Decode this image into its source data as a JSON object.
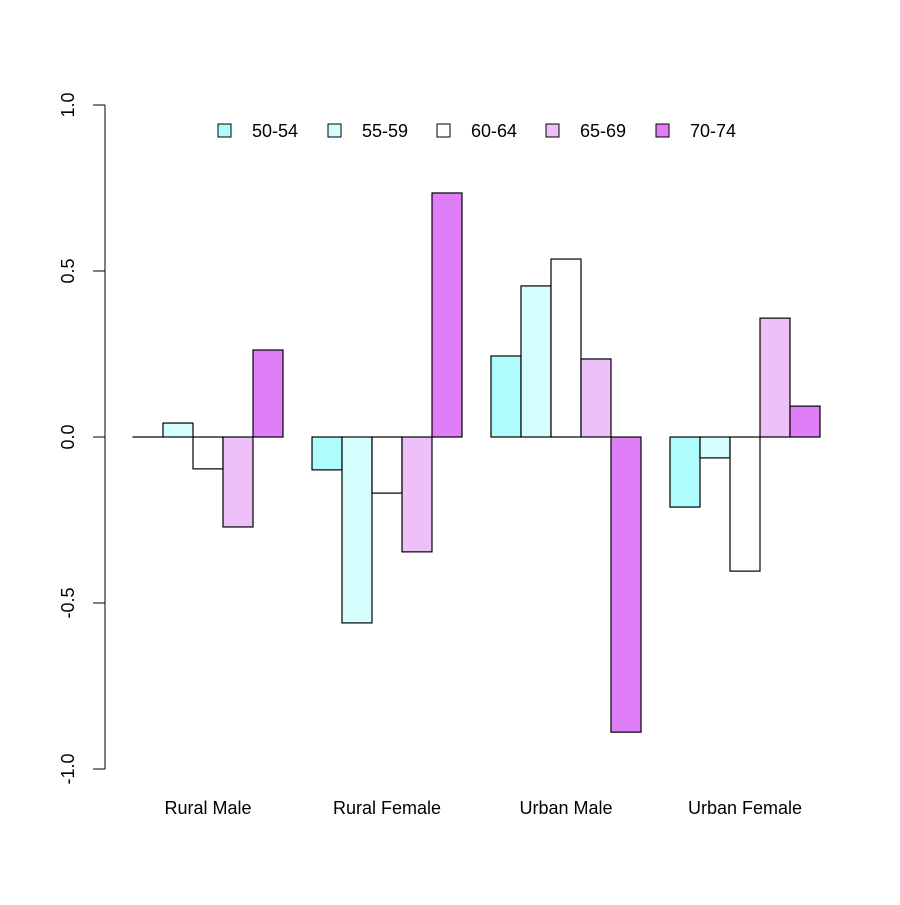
{
  "chart_data": {
    "type": "bar",
    "grouped": true,
    "categories": [
      "Rural Male",
      "Rural Female",
      "Urban Male",
      "Urban Female"
    ],
    "series": [
      {
        "name": "50-54",
        "color": "#AEFCFC",
        "values": [
          0.0,
          -0.099,
          0.244,
          -0.211
        ]
      },
      {
        "name": "55-59",
        "color": "#D4FEFE",
        "values": [
          0.042,
          -0.56,
          0.455,
          -0.063
        ]
      },
      {
        "name": "60-64",
        "color": "#FFFFFF",
        "values": [
          -0.096,
          -0.169,
          0.536,
          -0.404
        ]
      },
      {
        "name": "65-69",
        "color": "#EEC0FA",
        "values": [
          -0.271,
          -0.346,
          0.235,
          0.358
        ]
      },
      {
        "name": "70-74",
        "color": "#E07EF8",
        "values": [
          0.262,
          0.735,
          -0.889,
          0.093
        ]
      }
    ],
    "title": "",
    "xlabel": "",
    "ylabel": "",
    "ylim": [
      -1.0,
      1.0
    ],
    "yticks": [
      "-1.0",
      "-0.5",
      "0.0",
      "0.5",
      "1.0"
    ],
    "grid": false,
    "legend_position": "top"
  }
}
